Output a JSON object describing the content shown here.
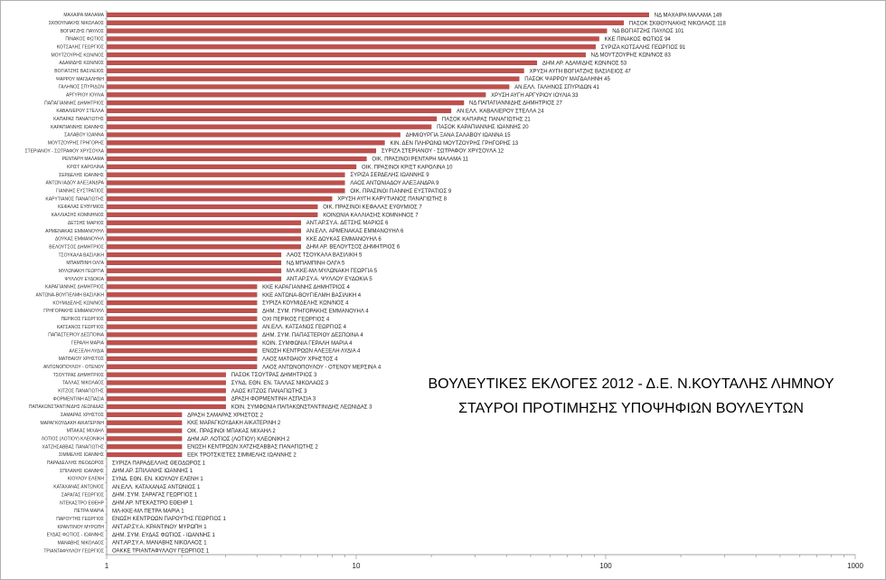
{
  "chart_data": {
    "type": "bar",
    "orientation": "horizontal",
    "title_lines": [
      "ΒΟΥΛΕΥΤΙΚΕΣ ΕΚΛΟΓΕΣ 2012 - Δ.Ε. Ν.ΚΟΥΤΑΛΗΣ ΛΗΜΝΟΥ",
      "ΣΤΑΥΡΟΙ ΠΡΟΤΙΜΗΣΗΣ ΥΠΟΨΗΦΙΩΝ ΒΟΥΛΕΥΤΩΝ"
    ],
    "x_scale": "log",
    "xlim": [
      1,
      1000
    ],
    "x_ticks": [
      1,
      10,
      100,
      1000
    ],
    "x_tick_labels": [
      "1",
      "10",
      "100",
      "1000"
    ],
    "grid": false,
    "legend": "none",
    "bar_color": "#c0504d",
    "categories": [
      "ΜΑΧΑΙΡΑ ΜΑΛΑΜΑ",
      "ΣΚΘΟΥΝΑΚΗΣ ΝΙΚΟΛΑΟΣ",
      "ΒΟΓΙΑΤΖΗΣ ΠΑΥΛΟΣ",
      "ΠΙΝΑΚΟΣ ΦΩΤΙΟΣ",
      "ΚΟΤΣΑΛΗΣ ΓΕΩΡΓΙΟΣ",
      "ΜΟΥΤΖΟΥΡΗΣ ΚΩΝ/ΝΟΣ",
      "ΑΔΑΜΙΔΗΣ ΚΩΝ/ΝΟΣ",
      "ΒΟΓΙΑΤΖΗΣ ΒΑΣΙΛΕΙΟΣ",
      "ΨΑΡΡΟΥ ΜΑΓΔΑΛΗΝΗ",
      "ΓΑΛΗΝΟΣ ΣΠΥΡΙΔΩΝ",
      "ΑΡΓΥΡΙΟΥ ΙΟΥΛΙΑ",
      "ΠΑΠΑΓΙΑΝΝΗΣ ΔΗΜΗΤΡΙΟΣ",
      "ΚΑΒΑΛΙΕΡΟΥ ΣΤΕΛΛΑ",
      "ΚΑΠΑΡΑΣ ΠΑΝΑΓΙΩΤΗΣ",
      "ΚΑΡΑΠΙΑΝΝΗΣ ΙΩΑΝΝΗΣ",
      "ΣΑΛΑΒΟΥ ΙΩΑΝΝΑ",
      "ΜΟΥΤΖΟΥΡΗΣ ΓΡΗΓΟΡΗΣ",
      "ΣΤΕΡΙΑΝΟΥ - ΣΩΤΡΑΦΟΥ ΧΡΥΣΟΥΛΑ",
      "ΡΕΝΤΑΡΗ ΜΑΛΑΜΑ",
      "ΚΡΙΣΤ ΚΑΡΟΛΙΝΑ",
      "ΣΕΡΔΕΛΗΣ ΙΩΑΝΝΗΣ",
      "ΑΝΤΩΝ ΙΑΔΟΥ ΑΛΕΞΑΝΔΡΑ",
      "ΓΙΑΝΝΗΣ ΕΥΣΤΡΑΤΙΟΣ",
      "ΚΑΡΥΤΙΑΝΟΣ ΠΑΝΑΓΙΩΤΗΣ",
      "ΚΕΦΑΛΑΣ ΕΥΘΥΜΙΟΣ",
      "ΚΑΛΛΙΑΣΗΣ ΚΟΜΝΗΝΟΣ",
      "ΔΕΤΣΗΣ ΜΑΡΙΟΣ",
      "ΑΡΜΕΝΑΚΑΣ ΕΜΜΑΝΟΥΗΛ",
      "ΔΟΥΚΑΣ ΕΜΜΑΝΟΥΗΛ",
      "ΒΕΛΟΥΤΣΟΣ ΔΗΜΗΤΡΙΟΣ",
      "ΤΣΟΥΚΑΛΑ ΒΑΣΙΛΙΚΗ",
      "ΜΠΑΜΠΙΝΗ ΟΛΓΑ",
      "ΜΥΛΩΝΑΚΗ ΓΕΩΡΓΙΑ",
      "ΨΥΛΛΟΥ ΕΥΔΟΚΙΑ",
      "ΚΑΡΑΓΙΑΝΝΗΣ ΔΗΜΗΤΡΙΟΣ",
      "ΑΝΤΩΝΑ-ΒΟΥΓΙΕΛΜΗ ΒΑΣΙΛΙΚΗ",
      "ΚΟΥΜΙΔΕΛΗΣ ΚΩΝ/ΝΟΣ",
      "ΓΡΗΓΟΡΑΚΗΣ ΕΜΜΑΝΟΥΗΛ",
      "ΠΕΡΙΚΟΣ ΓΕΩΡΓΙΟΣ",
      "ΚΑΤΣΑΝΟΣ ΓΕΩΡΓΙΟΣ",
      "ΠΑΠΑΣΤΕΡΙΟΥ ΔΕΣΠΟΙΝΑ",
      "ΓΕΡΑΛΗ ΜΑΡΙΑ",
      "ΑΛΕΞΕΛΗ ΛΥΔΙΑ",
      "ΜΑΤΘΑΙΟΥ ΧΡΗΣΤΟΣ",
      "ΑΝΤΩΝΟΠΟΥΛΟΥ - ΟΤΕΝΟΥ",
      "ΤΣΟΥΤΡΑΣ ΔΗΜΗΤΡΙΟΣ",
      "ΤΑΛΛΑΣ ΝΙΚΟΛΑΟΣ",
      "ΚΙΤΖΟΣ ΠΑΝΑΓΙΩΤΗΣ",
      "ΦΟΡΜΕΝΤΙΝΗ ΑΣΠΑΣΙΑ",
      "ΠΑΠΑΚΩΝΣΤΑΝΤΙΝΙΔΗΣ ΛΕΩΝΙΔΑΣ",
      "ΣΑΜΑΡΑΣ ΧΡΗΣΤΟΣ",
      "ΜΑΡΑΓΚΟΥΔΑΚΗ ΑΙΚΑΤΕΡΙΝΗ",
      "ΜΠΑΚΑΣ ΜΙΧΑΗΛ",
      "ΛΟΤΙΟΣ (ΛΟΤΙΟΥ) ΚΛΕΟΝΙΚΗ",
      "ΧΑΤΖΗΣΑΒΒΑΣ ΠΑΝΑΓΙΩΤΗΣ",
      "ΣΙΜΜΕΛΗΣ ΙΩΑΝΝΗΣ",
      "ΠΑΡΑΔΕΛΛΗΣ ΘΕΟΔΩΡΟΣ",
      "ΣΠΙΛΑΝΗΣ ΙΩΑΝΝΗΣ",
      "ΚΙΟΥΛΟΥ ΕΛΕΝΗ",
      "ΚΑΤΑΧΑΝΑΣ ΑΝΤΩΝΙΟΣ",
      "ΣΑΡΑΓΑΣ ΓΕΩΡΓΙΟΣ",
      "ΝΤΕΚΑΣΤΡΟ ΕΘΕΗΡ",
      "ΠΕΤΡΑ ΜΑΡΙΑ",
      "ΠΑΡΟΥΤΗΣ ΓΕΩΡΓΙΟΣ",
      "ΚΡΑΝΤΙΝΟΥ ΜΥΡΩΠΗ",
      "ΕΥΔΑΣ ΦΩΤΙΟΣ - ΙΩΑΝΝΗΣ",
      "ΜΑΝΑΒΗΣ ΝΙΚΟΛΑΟΣ",
      "ΤΡΙΑΝΤΑΦΥΛΛΟΥ ΓΕΩΡΓΙΟΣ"
    ],
    "bar_labels": [
      "ΝΔ ΜΑΧΑΙΡΑ ΜΑΛΑΜΑ 149",
      "ΠΑΣΟΚ ΣΚΘΟΥΝΑΚΗΣ ΝΙΚΟΛΑΟΣ 118",
      "ΝΔ ΒΟΓΙΑΤΖΗΣ ΠΑΥΛΟΣ 101",
      "ΚΚΕ ΠΙΝΑΚΟΣ ΦΩΤΙΟΣ 94",
      "ΣΥΡΙΖΑ ΚΟΤΣΑΛΗΣ ΓΕΩΡΓΙΟΣ 91",
      "ΝΔ ΜΟΥΤΖΟΥΡΗΣ ΚΩΝ/ΝΟΣ 83",
      "ΔΗΜ.ΑΡ. ΑΔΑΜΙΔΗΣ ΚΩΝ/ΝΟΣ 53",
      "ΧΡΥΣΗ ΑΥΓΗ ΒΟΓΙΑΤΖΗΣ ΒΑΣΙΛΕΙΟΣ 47",
      "ΠΑΣΟΚ ΨΑΡΡΟΥ ΜΑΓΔΑΛΗΝΗ 45",
      "ΑΝ.ΕΛΛ. ΓΑΛΗΝΟΣ ΣΠΥΡΙΔΩΝ 41",
      "ΧΡΥΣΗ ΑΥΓΗ ΑΡΓΥΡΙΟΥ ΙΟΥΛΙΑ 33",
      "ΝΔ ΠΑΠΑΓΙΑΝΝΙΔΗΣ ΔΗΜΗΤΡΙΟΣ 27",
      "ΑΝ.ΕΛΛ. ΚΑΒΑΛΙΕΡΟΥ ΣΤΕΛΛΑ 24",
      "ΠΑΣΟΚ ΚΑΠΑΡΑΣ ΠΑΝΑΓΙΩΤΗΣ 21",
      "ΠΑΣΟΚ ΚΑΡΑΠΙΑΝΝΗΣ ΙΩΑΝΝΗΣ 20",
      "ΔΗΜΙΟΥΡΓΙΑ ΞΑΝΑ ΣΑΛΑΒΟΥ ΙΩΑΝΝΑ 15",
      "ΚΙΝ. ΔΕΝ ΠΛΗΡΩΝΩ ΜΟΥΤΖΟΥΡΗΣ ΓΡΗΓΟΡΗΣ 13",
      "ΣΥΡΙΖΑ ΣΤΕΡΙΑΝΟΥ - ΣΩΤΡΑΦΟΥ ΧΡΥΣΟΥΛΑ 12",
      "ΟΙΚ. ΠΡΑΣΙΝΟΙ ΡΕΝΤΑΡΗ ΜΑΛΑΜΑ 11",
      "ΟΙΚ. ΠΡΑΣΙΝΟΙ ΚΡΙΣΤ ΚΑΡΟΛΙΝΑ 10",
      "ΣΥΡΙΖΑ ΣΕΡΔΕΛΗΣ ΙΩΑΝΝΗΣ 9",
      "ΛΑΟΣ ΑΝΤΩΝΙΑΔΟΥ ΑΛΕΞΑΝΔΡΑ 9",
      "ΟΙΚ. ΠΡΑΣΙΝΟΙ ΓΙΑΝΝΗΣ ΕΥΣΤΡΑΤΙΟΣ 9",
      "ΧΡΥΣΗ ΑΥΓΗ ΚΑΡΥΤΙΑΝΟΣ ΠΑΝΑΓΙΩΤΗΣ 8",
      "ΟΙΚ. ΠΡΑΣΙΝΟΙ ΚΕΦΑΛΑΣ ΕΥΘΥΜΙΟΣ 7",
      "ΚΟΙΝΩΝΙΑ ΚΑΛΛΙΑΣΗΣ ΚΟΜΝΗΝΟΣ 7",
      "ΑΝΤ.ΑΡ.ΣΥ.Α. ΔΕΤΣΗΣ ΜΑΡΙΟΣ 6",
      "ΑΝ.ΕΛΛ. ΑΡΜΕΝΑΚΑΣ ΕΜΜΑΝΟΥΗΛ 6",
      "ΚΚΕ ΔΟΥΚΑΣ ΕΜΜΑΝΟΥΗΛ 6",
      "ΔΗΜ.ΑΡ. ΒΕΛΟΥΤΣΟΣ ΔΗΜΗΤΡΙΟΣ 6",
      "ΛΑΟΣ ΤΣΟΥΚΑΛΑ ΒΑΣΙΛΙΚΗ 5",
      "ΝΔ ΜΠΑΜΠΙΝΗ ΟΛΓΑ 5",
      "ΜΛ-ΚΚΕ-ΜΛ ΜΥΛΩΝΑΚΗ ΓΕΩΡΓΙΑ 5",
      "ΑΝΤ.ΑΡ.ΣΥ.Α. ΨΥΛΛΟΥ ΕΥΔΟΚΙΑ 5",
      "ΚΚΕ ΚΑΡΑΓΙΑΝΝΗΣ ΔΗΜΗΤΡΙΟΣ 4",
      "ΚΚΕ ΑΝΤΩΝΑ-ΒΟΥΓΙΕΛΜΗ ΒΑΣΙΛΙΚΗ 4",
      "ΣΥΡΙΖΑ ΚΟΥΜΙΔΕΛΗΣ ΚΩΝ/ΝΟΣ 4",
      "ΔΗΜ. ΣΥΜ. ΓΡΗΓΟΡΑΚΗΣ ΕΜΜΑΝΟΥΗΛ 4",
      "ΟΧΙ ΠΕΡΙΚΟΣ ΓΕΩΡΓΙΟΣ 4",
      "ΑΝ.ΕΛΛ. ΚΑΤΣΑΝΟΣ ΓΕΩΡΓΙΟΣ 4",
      "ΔΗΜ. ΣΥΜ. ΠΑΠΑΣΤΕΡΙΟΥ ΔΕΣΠΟΙΝΑ 4",
      "ΚΟΙΝ. ΣΥΜΦΩΝΙΑ ΓΕΡΑΛΗ ΜΑΡΙΑ 4",
      "ΕΝΩΣΗ ΚΕΝΤΡΩΩΝ ΑΛΕΞΕΛΗ ΛΥΔΙΑ 4",
      "ΛΑΟΣ ΜΑΤΘΑΙΟΥ ΧΡΗΣΤΟΣ 4",
      "ΛΑΟΣ ΑΝΤΩΝΟΠΟΥΛΟΥ - ΟΤΕΝΟΥ ΜΕΡΣΙΝΑ 4",
      "ΠΑΣΟΚ ΤΣΟΥΤΡΑΣ ΔΗΜΗΤΡΙΟΣ 3",
      "ΣΥΝΔ. ΕΘΝ. ΕΝ. ΤΑΛΛΑΣ ΝΙΚΟΛΑΟΣ 3",
      "ΛΑΟΣ ΚΙΤΖΟΣ ΠΑΝΑΓΙΩΤΗΣ 3",
      "ΔΡΑΣΗ ΦΟΡΜΕΝΤΙΝΗ ΑΣΠΑΣΙΑ 3",
      "ΚΟΙΝ. ΣΥΜΦΩΝΙΑ ΠΑΠΑΚΩΝΣΤΑΝΤΙΝΙΔΗΣ ΛΕΩΝΙΔΑΣ 3",
      "ΔΡΑΣΗ ΣΑΜΑΡΑΣ ΧΡΗΣΤΟΣ 2",
      "ΚΚΕ ΜΑΡΑΓΚΟΥΔΑΚΗ ΑΙΚΑΤΕΡΙΝΗ 2",
      "ΟΙΚ. ΠΡΑΣΙΝΟΙ ΜΠΑΚΑΣ ΜΙΧΑΗΛ 2",
      "ΔΗΜ.ΑΡ. ΛΟΤΙΟΣ (ΛΟΤΙΟΥ) ΚΛΕΟΝΙΚΗ 2",
      "ΕΝΩΣΗ ΚΕΝΤΡΩΩΝ ΧΑΤΖΗΣΑΒΒΑΣ ΠΑΝΑΓΙΩΤΗΣ 2",
      "ΕΕΚ ΤΡΟΤΣΚΙΣΤΕΣ ΣΙΜΜΕΛΗΣ ΙΩΑΝΝΗΣ 2",
      "ΣΥΡΙΖΑ ΠΑΡΑΔΕΛΛΗΣ ΘΕΟΔΩΡΟΣ 1",
      "ΔΗΜ.ΑΡ. ΣΠΙΛΑΝΗΣ ΙΩΑΝΝΗΣ 1",
      "ΣΥΝΔ. ΕΘΝ. ΕΝ. ΚΙΟΥΛΟΥ ΕΛΕΝΗ 1",
      "ΑΝ.ΕΛΛ. ΚΑΤΑΧΑΝΑΣ ΑΝΤΩΝΙΟΣ 1",
      "ΔΗΜ. ΣΥΜ. ΣΑΡΑΓΑΣ ΓΕΩΡΓΙΟΣ 1",
      "ΔΗΜ.ΑΡ. ΝΤΕΚΑΣΤΡΟ ΕΘΕΗΡ 1",
      "ΜΛ-ΚΚΕ-ΜΛ ΠΕΤΡΑ ΜΑΡΙΑ 1",
      "ΕΝΩΣΗ ΚΕΝΤΡΩΩΝ ΠΑΡΟΥΤΗΣ ΓΕΩΡΓΙΟΣ 1",
      "ΑΝΤ.ΑΡ.ΣΥ.Α. ΚΡΑΝΤΙΝΟΥ ΜΥΡΩΠΗ 1",
      "ΔΗΜ. ΣΥΜ. ΕΥΔΑΣ ΦΩΤΙΟΣ - ΙΩΑΝΝΗΣ 1",
      "ΑΝΤ.ΑΡ.ΣΥ.Α. ΜΑΝΑΒΗΣ ΝΙΚΟΛΑΟΣ 1",
      "ΟΑΚΚΕ ΤΡΙΑΝΤΑΦΥΛΛΟΥ ΓΕΩΡΓΙΟΣ 1"
    ],
    "values": [
      149,
      118,
      101,
      94,
      91,
      83,
      53,
      47,
      45,
      41,
      33,
      27,
      24,
      21,
      20,
      15,
      13,
      12,
      11,
      10,
      9,
      9,
      9,
      8,
      7,
      7,
      6,
      6,
      6,
      6,
      5,
      5,
      5,
      5,
      4,
      4,
      4,
      4,
      4,
      4,
      4,
      4,
      4,
      4,
      4,
      3,
      3,
      3,
      3,
      3,
      2,
      2,
      2,
      2,
      2,
      2,
      1,
      1,
      1,
      1,
      1,
      1,
      1,
      1,
      1,
      1,
      1,
      1
    ]
  }
}
